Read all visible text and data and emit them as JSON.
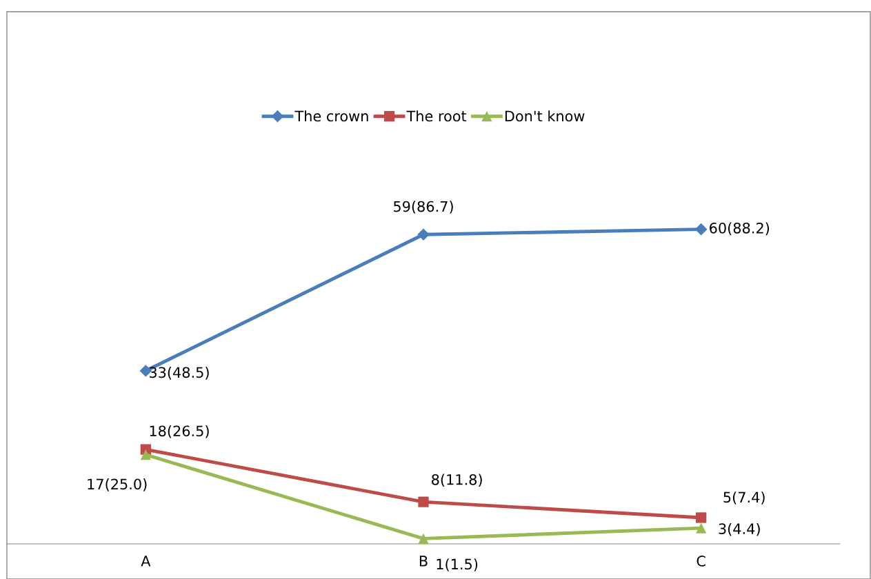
{
  "chart_data": {
    "type": "line",
    "categories": [
      "A",
      "B",
      "C"
    ],
    "legend": "top",
    "grid": false,
    "series": [
      {
        "name": "The crown",
        "color": "#4a7ebb",
        "marker": "diamond",
        "values": [
          33,
          59,
          60
        ],
        "value_labels": [
          "33(48.5)",
          "59(86.7)",
          "60(88.2)"
        ]
      },
      {
        "name": "The root",
        "color": "#be4b48",
        "marker": "square",
        "values": [
          18,
          8,
          5
        ],
        "value_labels": [
          "18(26.5)",
          "8(11.8)",
          "5(7.4)"
        ]
      },
      {
        "name": "Don't know",
        "color": "#98b954",
        "marker": "triangle",
        "values": [
          17,
          1,
          3
        ],
        "value_labels": [
          "17(25.0)",
          "1(1.5)",
          "3(4.4)"
        ]
      }
    ]
  }
}
